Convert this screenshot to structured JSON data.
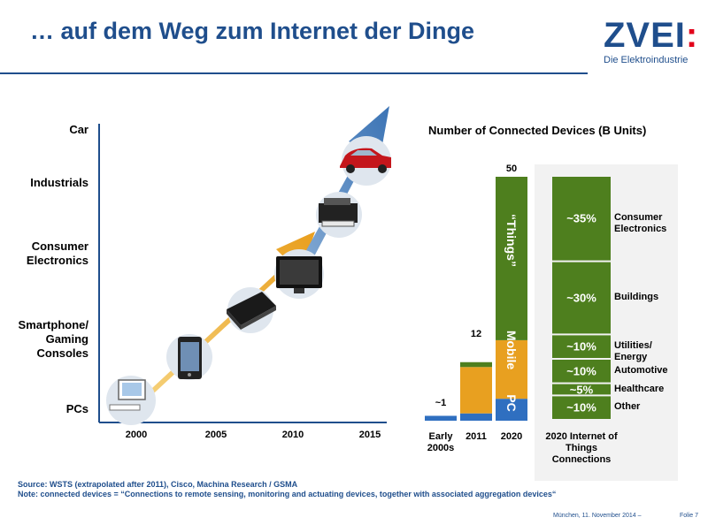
{
  "header": {
    "title": "… auf dem Weg zum Internet der Dinge"
  },
  "logo": {
    "word": "ZVEI",
    "colon": ":",
    "subtitle": "Die Elektroindustrie"
  },
  "colors": {
    "brand": "#1f4e8c",
    "green": "#4e7f1e",
    "orange": "#e8a020",
    "blue": "#2f6fc0"
  },
  "left_chart": {
    "y_categories": [
      "PCs",
      "Smartphone/\nGaming\nConsoles",
      "Consumer\nElectronics",
      "Industrials",
      "Car"
    ],
    "x_ticks": [
      "2000",
      "2005",
      "2010",
      "2015"
    ],
    "device_icons": [
      "pc-icon",
      "smartphone-icon",
      "gaming-console-icon",
      "monitor-icon",
      "printer-icon",
      "car-icon"
    ]
  },
  "chart_data": {
    "type": "bar",
    "title": "Number of Connected Devices (B Units)",
    "categories": [
      "Early 2000s",
      "2011",
      "2020"
    ],
    "totals": [
      "~1",
      "12",
      "50"
    ],
    "series": [
      {
        "name": "PC",
        "values": [
          1,
          1.5,
          4.5
        ]
      },
      {
        "name": "Mobile",
        "values": [
          0,
          9.5,
          12
        ]
      },
      {
        "name": "“Things”",
        "values": [
          0,
          1,
          33.5
        ]
      }
    ],
    "ylim": [
      0,
      50
    ],
    "breakdown": {
      "title": "2020 Internet of Things Connections",
      "segments": [
        {
          "name": "Other",
          "pct": "~10%",
          "value": 10
        },
        {
          "name": "Healthcare",
          "pct": "~5%",
          "value": 5
        },
        {
          "name": "Automotive",
          "pct": "~10%",
          "value": 10
        },
        {
          "name": "Utilities/ Energy",
          "pct": "~10%",
          "value": 10
        },
        {
          "name": "Buildings",
          "pct": "~30%",
          "value": 30
        },
        {
          "name": "Consumer Electronics",
          "pct": "~35%",
          "value": 35
        }
      ]
    }
  },
  "notes": {
    "source": "Source: WSTS (extrapolated after 2011), Cisco, Machina Research / GSMA",
    "note": "Note: connected devices = “Connections to remote sensing, monitoring and actuating devices, together with associated aggregation devices“"
  },
  "footer": {
    "text": "München, 11. November  2014  –",
    "slide": "Folie 7"
  }
}
